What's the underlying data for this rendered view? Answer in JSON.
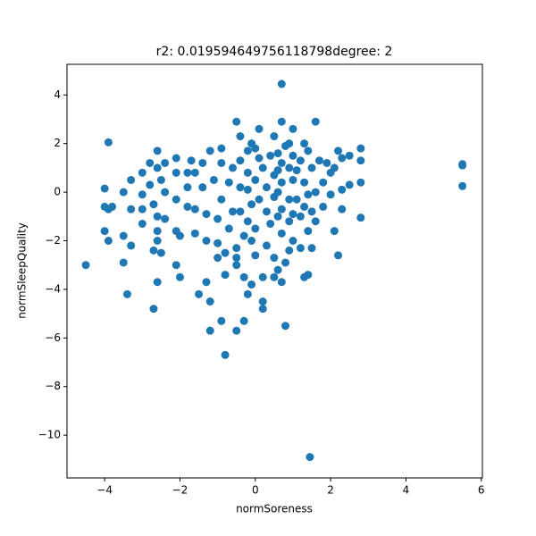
{
  "chart_data": {
    "type": "scatter",
    "title": "r2: 0.019594649756118798degree: 2",
    "xlabel": "normSoreness",
    "ylabel": "normSleepQuality",
    "color": "#1f77b4",
    "xlim": [
      -5.0,
      6.03
    ],
    "ylim": [
      -11.76,
      5.26
    ],
    "xticks": [
      {
        "value": -4,
        "label": "−4"
      },
      {
        "value": -2,
        "label": "−2"
      },
      0,
      2,
      4,
      6
    ],
    "yticks": [
      {
        "value": -10,
        "label": "−10"
      },
      {
        "value": -8,
        "label": "−8"
      },
      {
        "value": -6,
        "label": "−6"
      },
      {
        "value": -4,
        "label": "−4"
      },
      {
        "value": -2,
        "label": "−2"
      },
      0,
      2,
      4
    ],
    "x": [
      -4.5,
      -3.9,
      -4.0,
      -4.0,
      -3.9,
      -3.8,
      -4.0,
      -3.9,
      -3.5,
      -3.5,
      -3.4,
      -3.5,
      -3.3,
      -3.3,
      -3.3,
      -3.0,
      -3.0,
      -3.0,
      -3.0,
      -2.8,
      -2.8,
      -2.7,
      -2.7,
      -2.7,
      -2.6,
      -2.6,
      -2.6,
      -2.6,
      -2.6,
      -2.6,
      -2.5,
      -2.5,
      -2.4,
      -2.4,
      -2.4,
      -2.1,
      -2.1,
      -2.1,
      -2.1,
      -2.1,
      -2.0,
      -2.0,
      -1.8,
      -1.8,
      -1.8,
      -1.7,
      -1.6,
      -1.6,
      -1.6,
      -1.5,
      -1.4,
      -1.4,
      -1.3,
      -1.3,
      -1.3,
      -1.2,
      -1.2,
      -1.2,
      -1.1,
      -1.0,
      -1.0,
      -1.0,
      -0.9,
      -0.9,
      -0.9,
      -0.9,
      -0.8,
      -0.8,
      -0.8,
      -0.7,
      -0.7,
      -0.6,
      -0.6,
      -0.5,
      -0.5,
      -0.5,
      -0.5,
      -0.5,
      -0.4,
      -0.4,
      -0.4,
      -0.4,
      -0.3,
      -0.3,
      -0.3,
      -0.2,
      -0.2,
      -0.2,
      -0.2,
      -0.2,
      -0.1,
      -0.1,
      -0.1,
      -0.1,
      0.0,
      0.0,
      0.0,
      0.0,
      0.1,
      0.1,
      0.1,
      0.2,
      0.2,
      0.2,
      0.2,
      0.3,
      0.3,
      0.3,
      0.4,
      0.4,
      0.5,
      0.5,
      0.5,
      0.5,
      0.5,
      0.6,
      0.6,
      0.6,
      0.6,
      0.6,
      0.7,
      0.7,
      0.7,
      0.7,
      0.7,
      0.7,
      0.7,
      0.8,
      0.8,
      0.8,
      0.9,
      0.9,
      0.9,
      0.9,
      0.9,
      1.0,
      1.0,
      1.0,
      1.0,
      1.0,
      1.1,
      1.1,
      1.2,
      1.2,
      1.2,
      1.3,
      1.3,
      1.3,
      1.3,
      1.4,
      1.4,
      1.4,
      1.4,
      1.45,
      1.5,
      1.5,
      1.5,
      1.6,
      1.6,
      1.6,
      1.7,
      1.8,
      1.8,
      1.9,
      2.0,
      2.0,
      2.1,
      2.1,
      2.2,
      2.2,
      2.3,
      2.3,
      2.3,
      2.5,
      2.5,
      2.8,
      2.8,
      2.8,
      2.8,
      5.5,
      5.5,
      5.5
    ],
    "values": [
      -3.0,
      2.05,
      0.15,
      -0.6,
      -0.7,
      -0.6,
      -1.6,
      -2.0,
      -1.8,
      -2.9,
      -4.2,
      0.0,
      0.5,
      -0.7,
      -2.2,
      0.8,
      -0.1,
      -0.7,
      -1.3,
      1.2,
      0.3,
      -0.5,
      -2.4,
      -4.8,
      1.7,
      1.0,
      -1.0,
      -1.6,
      -2.0,
      -3.7,
      0.5,
      -2.5,
      1.2,
      0.0,
      -1.1,
      1.4,
      0.8,
      -0.3,
      -1.6,
      -3.0,
      -3.5,
      -1.8,
      0.8,
      0.2,
      -0.6,
      1.3,
      0.8,
      -0.7,
      -1.7,
      -4.2,
      1.2,
      0.2,
      -0.9,
      -2.0,
      -3.7,
      -4.5,
      -5.7,
      1.7,
      0.5,
      -1.1,
      -2.1,
      -2.7,
      1.8,
      1.2,
      -0.3,
      -5.3,
      -2.5,
      -3.4,
      -6.7,
      -1.5,
      0.4,
      1.0,
      -0.8,
      -2.3,
      -2.7,
      -3.0,
      -5.7,
      2.9,
      2.3,
      1.3,
      0.2,
      -0.8,
      -1.8,
      -3.5,
      -5.3,
      1.7,
      0.8,
      0.1,
      -1.2,
      -4.2,
      2.0,
      -0.5,
      -2.0,
      -3.8,
      1.8,
      0.5,
      -1.5,
      -2.6,
      2.6,
      1.4,
      -0.3,
      -3.5,
      -4.5,
      -4.8,
      1.0,
      0.2,
      -0.8,
      -2.2,
      1.5,
      -1.3,
      2.3,
      0.7,
      -0.2,
      -2.7,
      -3.5,
      1.6,
      0.9,
      0.0,
      -1.0,
      -3.2,
      4.45,
      2.9,
      1.2,
      0.4,
      -0.7,
      -1.7,
      -3.7,
      1.9,
      -2.9,
      -5.5,
      2.0,
      1.0,
      -0.3,
      -1.2,
      -2.4,
      2.6,
      1.5,
      0.5,
      -0.9,
      -2.0,
      0.9,
      -0.3,
      1.3,
      -1.0,
      -2.3,
      2.0,
      0.4,
      -0.6,
      -3.5,
      1.7,
      -0.1,
      -1.6,
      -3.4,
      -10.9,
      1.0,
      -0.8,
      -2.3,
      2.9,
      0.0,
      -1.2,
      1.3,
      0.4,
      -0.6,
      1.2,
      0.8,
      -0.1,
      -1.6,
      1.0,
      1.7,
      -2.6,
      1.4,
      0.1,
      -0.7,
      1.5,
      0.3,
      1.8,
      1.3,
      0.4,
      -1.05,
      1.15,
      1.1,
      0.25
    ]
  }
}
